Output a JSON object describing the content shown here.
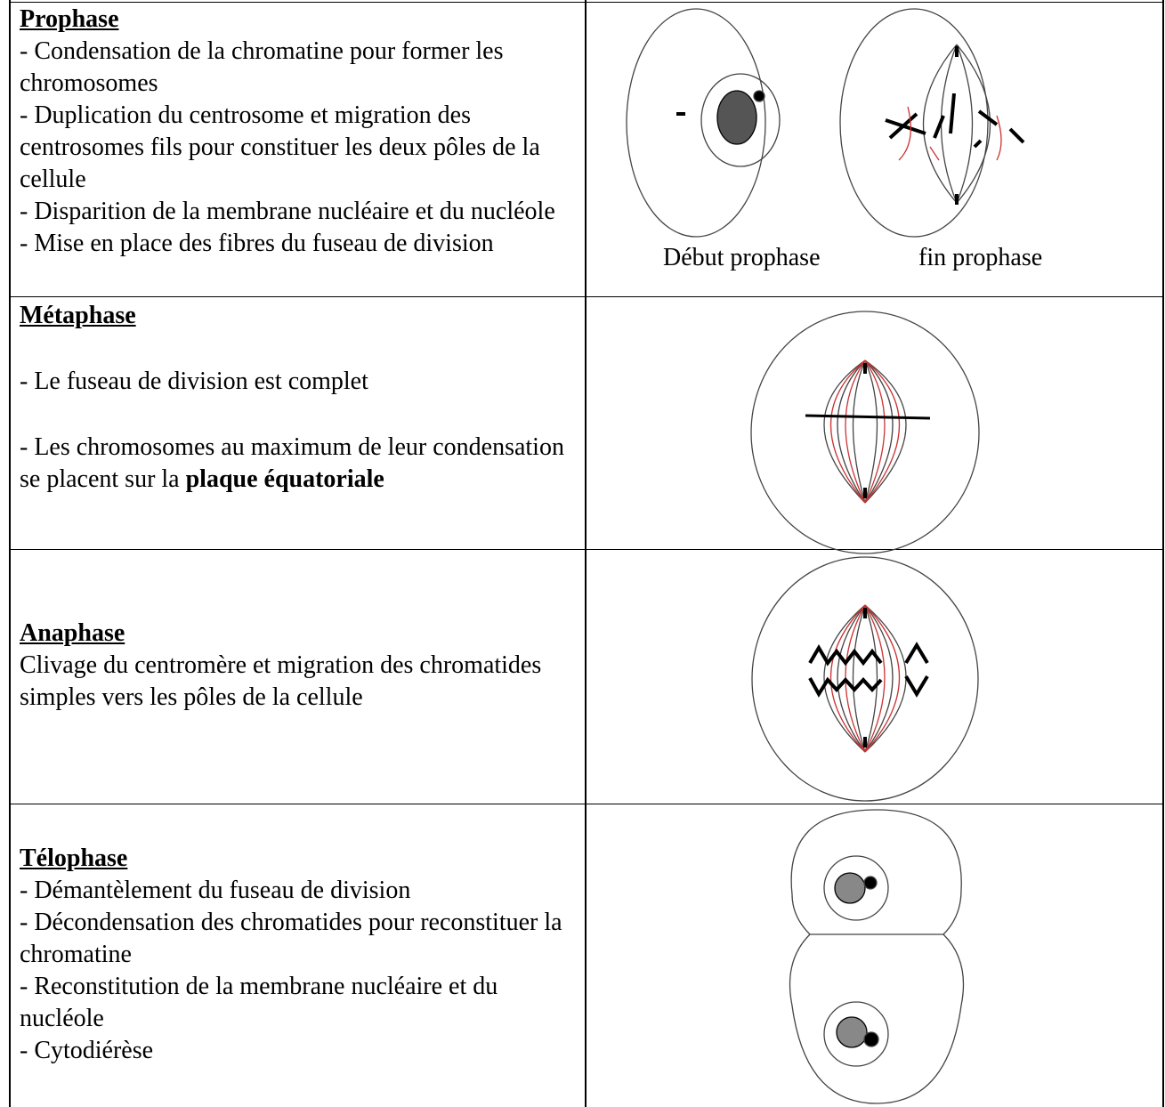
{
  "table": {
    "rows": [
      {
        "title": "Prophase",
        "items": [
          [
            {
              "text": "- Condensation de la chromatine pour former les chromosomes"
            }
          ],
          [
            {
              "text": "- Duplication du centrosome et migration des centrosomes fils pour constituer les deux pôles de la cellule"
            }
          ],
          [
            {
              "text": "- Disparition de la membrane nucléaire et du nucléole"
            }
          ],
          [
            {
              "text": "- Mise en place des fibres du fuseau de division"
            }
          ]
        ],
        "captions": [
          "Début prophase",
          "fin prophase"
        ]
      },
      {
        "title": "Métaphase",
        "items": [
          [
            {
              "text": "- Le fuseau de division est complet"
            }
          ],
          [
            {
              "text": "- Les chromosomes au maximum de leur condensation se placent sur la "
            },
            {
              "text": "plaque équatoriale",
              "bold": true
            }
          ]
        ]
      },
      {
        "title": "Anaphase",
        "items": [
          [
            {
              "text": "Clivage du centromère et migration des chromatides simples vers les pôles de la cellule"
            }
          ]
        ]
      },
      {
        "title": "Télophase",
        "items": [
          [
            {
              "text": "- Démantèlement du fuseau de division"
            }
          ],
          [
            {
              "text": "- Décondensation des chromatides pour reconstituer la chromatine"
            }
          ],
          [
            {
              "text": "- Reconstitution de la membrane nucléaire et du nucléole"
            }
          ],
          [
            {
              "text": "- Cytodiérèse"
            }
          ]
        ]
      }
    ]
  }
}
